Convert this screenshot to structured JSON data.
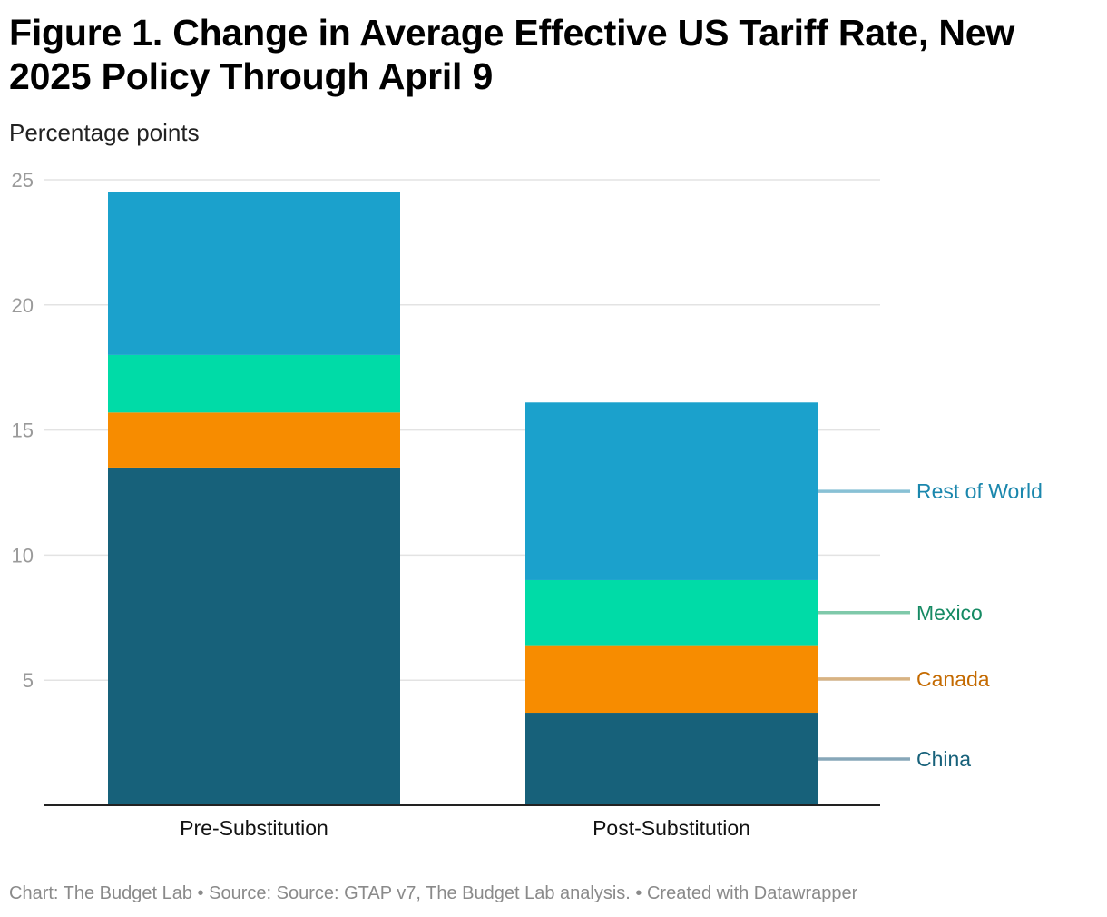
{
  "title": "Figure 1. Change in Average Effective US Tariff Rate, New 2025 Policy Through April 9",
  "subtitle": "Percentage points",
  "footer": {
    "chart_by": "Chart: The Budget Lab",
    "sep1": " • ",
    "source": "Source: Source: GTAP v7, The Budget Lab analysis.",
    "sep2": " • ",
    "created": "Created with Datawrapper"
  },
  "colors": {
    "china": "#17617a",
    "canada": "#f78c00",
    "mexico": "#00dba7",
    "rest_of_world": "#1ba1cc",
    "gridline": "#e3e3e3",
    "baseline": "#222222",
    "tick_label": "#9a9a9a"
  },
  "chart_data": {
    "type": "bar",
    "stacked": true,
    "title": "Figure 1. Change in Average Effective US Tariff Rate, New 2025 Policy Through April 9",
    "ylabel": "Percentage points",
    "categories": [
      "Pre-Substitution",
      "Post-Substitution"
    ],
    "ylim": [
      0,
      25
    ],
    "yticks": [
      5,
      10,
      15,
      20,
      25
    ],
    "grid": true,
    "legend": "direct labels to the right of the last bar",
    "series": [
      {
        "name": "China",
        "values": [
          13.5,
          3.7
        ],
        "color": "#17617a",
        "label_color": "#17617a",
        "line_color": "#87a7b9"
      },
      {
        "name": "Canada",
        "values": [
          2.2,
          2.7
        ],
        "color": "#f78c00",
        "label_color": "#c46a00",
        "line_color": "#d8b383"
      },
      {
        "name": "Mexico",
        "values": [
          2.3,
          2.6
        ],
        "color": "#00dba7",
        "label_color": "#168a63",
        "line_color": "#7fc9aa"
      },
      {
        "name": "Rest of World",
        "values": [
          6.5,
          7.1
        ],
        "color": "#1ba1cc",
        "label_color": "#1b87ad",
        "line_color": "#88c1d5"
      }
    ]
  }
}
